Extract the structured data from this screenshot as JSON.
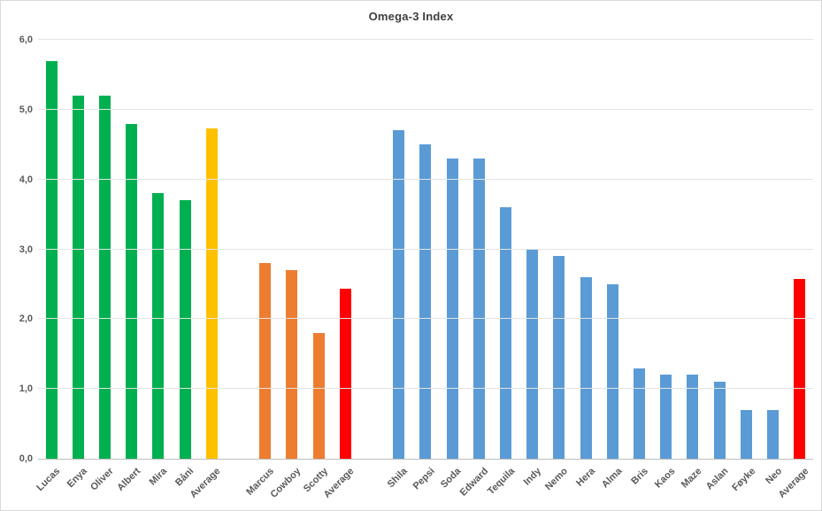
{
  "chart_data": {
    "type": "bar",
    "title": "Omega-3 Index",
    "xlabel": "",
    "ylabel": "",
    "ylim": [
      0,
      6
    ],
    "ytick_step": 1,
    "ytick_labels": [
      "0,0",
      "1,0",
      "2,0",
      "3,0",
      "4,0",
      "5,0",
      "6,0"
    ],
    "decimal_separator": ",",
    "grid": true,
    "legend": "none",
    "colors": {
      "green": "#00B050",
      "yellow": "#FFC000",
      "orange": "#ED7D31",
      "blue": "#5B9BD5",
      "red": "#FF0000"
    },
    "bars": [
      {
        "label": "Lucas",
        "value": 5.7,
        "color": "green"
      },
      {
        "label": "Enya",
        "value": 5.2,
        "color": "green"
      },
      {
        "label": "Oliver",
        "value": 5.2,
        "color": "green"
      },
      {
        "label": "Albert",
        "value": 4.8,
        "color": "green"
      },
      {
        "label": "Mira",
        "value": 3.8,
        "color": "green"
      },
      {
        "label": "Båni",
        "value": 3.7,
        "color": "green"
      },
      {
        "label": "Average",
        "value": 4.73,
        "color": "yellow"
      },
      {
        "label": "",
        "value": null,
        "color": null
      },
      {
        "label": "Marcus",
        "value": 2.8,
        "color": "orange"
      },
      {
        "label": "Cowboy",
        "value": 2.7,
        "color": "orange"
      },
      {
        "label": "Scotty",
        "value": 1.8,
        "color": "orange"
      },
      {
        "label": "Average",
        "value": 2.43,
        "color": "red"
      },
      {
        "label": "",
        "value": null,
        "color": null
      },
      {
        "label": "Shila",
        "value": 4.7,
        "color": "blue"
      },
      {
        "label": "Pepsi",
        "value": 4.5,
        "color": "blue"
      },
      {
        "label": "Soda",
        "value": 4.3,
        "color": "blue"
      },
      {
        "label": "Edward",
        "value": 4.3,
        "color": "blue"
      },
      {
        "label": "Tequila",
        "value": 3.6,
        "color": "blue"
      },
      {
        "label": "Indy",
        "value": 3.0,
        "color": "blue"
      },
      {
        "label": "Nemo",
        "value": 2.9,
        "color": "blue"
      },
      {
        "label": "Hera",
        "value": 2.6,
        "color": "blue"
      },
      {
        "label": "Alma",
        "value": 2.5,
        "color": "blue"
      },
      {
        "label": "Bris",
        "value": 1.3,
        "color": "blue"
      },
      {
        "label": "Kaos",
        "value": 1.2,
        "color": "blue"
      },
      {
        "label": "Maze",
        "value": 1.2,
        "color": "blue"
      },
      {
        "label": "Aslan",
        "value": 1.1,
        "color": "blue"
      },
      {
        "label": "Føyke",
        "value": 0.7,
        "color": "blue"
      },
      {
        "label": "Neo",
        "value": 0.7,
        "color": "blue"
      },
      {
        "label": "Average",
        "value": 2.57,
        "color": "red"
      }
    ]
  }
}
